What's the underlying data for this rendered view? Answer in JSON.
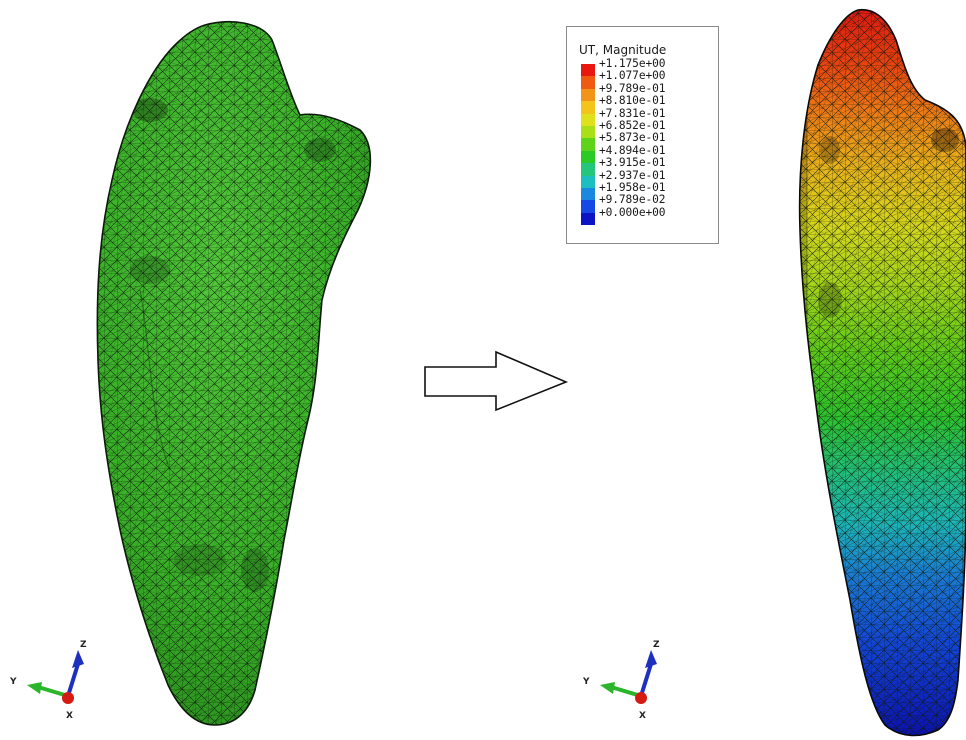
{
  "legend": {
    "title": "UT, Magnitude",
    "labels": [
      "+1.175e+00",
      "+1.077e+00",
      "+9.789e-01",
      "+8.810e-01",
      "+7.831e-01",
      "+6.852e-01",
      "+5.873e-01",
      "+4.894e-01",
      "+3.915e-01",
      "+2.937e-01",
      "+1.958e-01",
      "+9.789e-02",
      "+0.000e+00"
    ],
    "colors": [
      "#e8180f",
      "#ee5a12",
      "#f2931a",
      "#f3c51b",
      "#dfe11a",
      "#a9df17",
      "#5fd21a",
      "#2bcb27",
      "#23c67a",
      "#1cbfbf",
      "#1b88df",
      "#1549e6",
      "#0d14c6"
    ]
  },
  "left_model": {
    "mesh_color": "#3db92a",
    "state": "undeformed"
  },
  "right_model": {
    "state": "deformed contour"
  },
  "triad": {
    "axes": [
      "Z",
      "Y",
      "X"
    ],
    "colors": {
      "z": "#1f2fc0",
      "y": "#2bb52b",
      "x": "#d51a12"
    }
  }
}
